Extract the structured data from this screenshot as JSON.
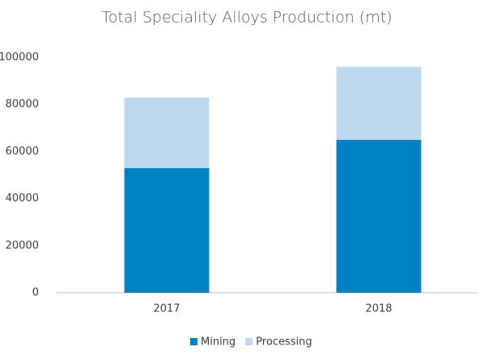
{
  "chart_data": {
    "type": "stacked_bar",
    "title": "Total Speciality Alloys Production (mt)",
    "categories": [
      "2017",
      "2018"
    ],
    "series": [
      {
        "name": "Mining",
        "color": "#0082c3",
        "values": [
          53000,
          65000
        ]
      },
      {
        "name": "Processing",
        "color": "#bdd7ee",
        "values": [
          30000,
          31000
        ]
      }
    ],
    "ylim": [
      0,
      100000
    ],
    "yticks": [
      0,
      20000,
      40000,
      60000,
      80000,
      100000
    ],
    "grid": false,
    "legend": "bottom"
  }
}
